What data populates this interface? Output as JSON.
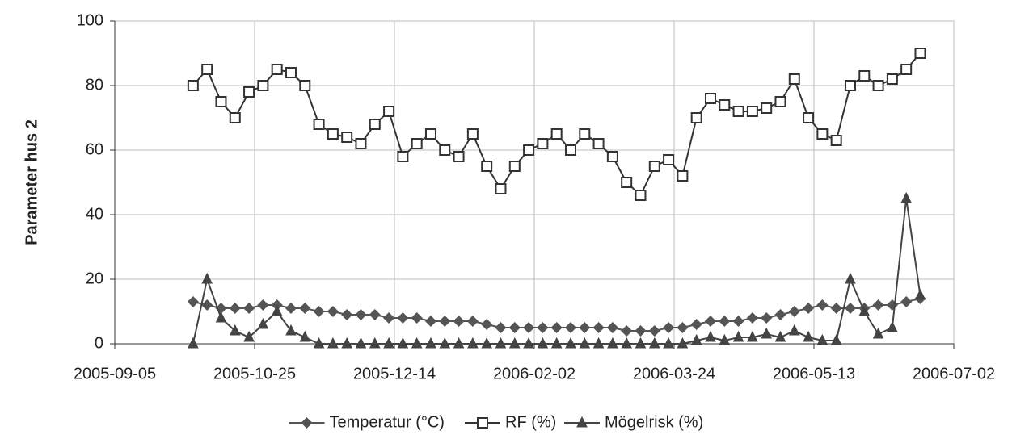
{
  "chart_data": {
    "type": "line",
    "y_label": "Parameter hus 2",
    "xlim": [
      "2005-09-05",
      "2006-07-02"
    ],
    "xticks": [
      "2005-09-05",
      "2005-10-25",
      "2005-12-14",
      "2006-02-02",
      "2006-03-24",
      "2006-05-13",
      "2006-07-02"
    ],
    "ylim": [
      0,
      100
    ],
    "yticks": [
      0,
      20,
      40,
      60,
      80,
      100
    ],
    "grid": true,
    "legend": "bottom",
    "x": [
      "2005-10-03",
      "2005-10-08",
      "2005-10-13",
      "2005-10-18",
      "2005-10-23",
      "2005-10-28",
      "2005-11-02",
      "2005-11-07",
      "2005-11-12",
      "2005-11-17",
      "2005-11-22",
      "2005-11-27",
      "2005-12-02",
      "2005-12-07",
      "2005-12-12",
      "2005-12-17",
      "2005-12-22",
      "2005-12-27",
      "2006-01-01",
      "2006-01-06",
      "2006-01-11",
      "2006-01-16",
      "2006-01-21",
      "2006-01-26",
      "2006-01-31",
      "2006-02-05",
      "2006-02-10",
      "2006-02-15",
      "2006-02-20",
      "2006-02-25",
      "2006-03-02",
      "2006-03-07",
      "2006-03-12",
      "2006-03-17",
      "2006-03-22",
      "2006-03-27",
      "2006-04-01",
      "2006-04-06",
      "2006-04-11",
      "2006-04-16",
      "2006-04-21",
      "2006-04-26",
      "2006-05-01",
      "2006-05-06",
      "2006-05-11",
      "2006-05-16",
      "2006-05-21",
      "2006-05-26",
      "2006-05-31",
      "2006-06-05",
      "2006-06-10",
      "2006-06-15",
      "2006-06-20"
    ],
    "series": [
      {
        "name": "Temperatur (°C)",
        "color": "#555555",
        "marker": "diamond",
        "values": [
          13,
          12,
          11,
          11,
          11,
          12,
          12,
          11,
          11,
          10,
          10,
          9,
          9,
          9,
          8,
          8,
          8,
          7,
          7,
          7,
          7,
          6,
          5,
          5,
          5,
          5,
          5,
          5,
          5,
          5,
          5,
          4,
          4,
          4,
          5,
          5,
          6,
          7,
          7,
          7,
          8,
          8,
          9,
          10,
          11,
          12,
          11,
          11,
          11,
          12,
          12,
          13,
          14
        ]
      },
      {
        "name": "RF (%)",
        "color": "#333333",
        "marker": "square",
        "values": [
          80,
          85,
          75,
          70,
          78,
          80,
          85,
          84,
          80,
          68,
          65,
          64,
          62,
          68,
          72,
          58,
          62,
          65,
          60,
          58,
          65,
          55,
          48,
          55,
          60,
          62,
          65,
          60,
          65,
          62,
          58,
          50,
          46,
          55,
          57,
          52,
          70,
          76,
          74,
          72,
          72,
          73,
          75,
          82,
          70,
          65,
          63,
          80,
          83,
          80,
          82,
          85,
          90
        ]
      },
      {
        "name": "Mögelrisk (%)",
        "color": "#444444",
        "marker": "triangle",
        "values": [
          0,
          20,
          8,
          4,
          2,
          6,
          10,
          4,
          2,
          0,
          0,
          0,
          0,
          0,
          0,
          0,
          0,
          0,
          0,
          0,
          0,
          0,
          0,
          0,
          0,
          0,
          0,
          0,
          0,
          0,
          0,
          0,
          0,
          0,
          0,
          0,
          1,
          2,
          1,
          2,
          2,
          3,
          2,
          4,
          2,
          1,
          1,
          20,
          10,
          3,
          5,
          45,
          15
        ]
      }
    ]
  }
}
